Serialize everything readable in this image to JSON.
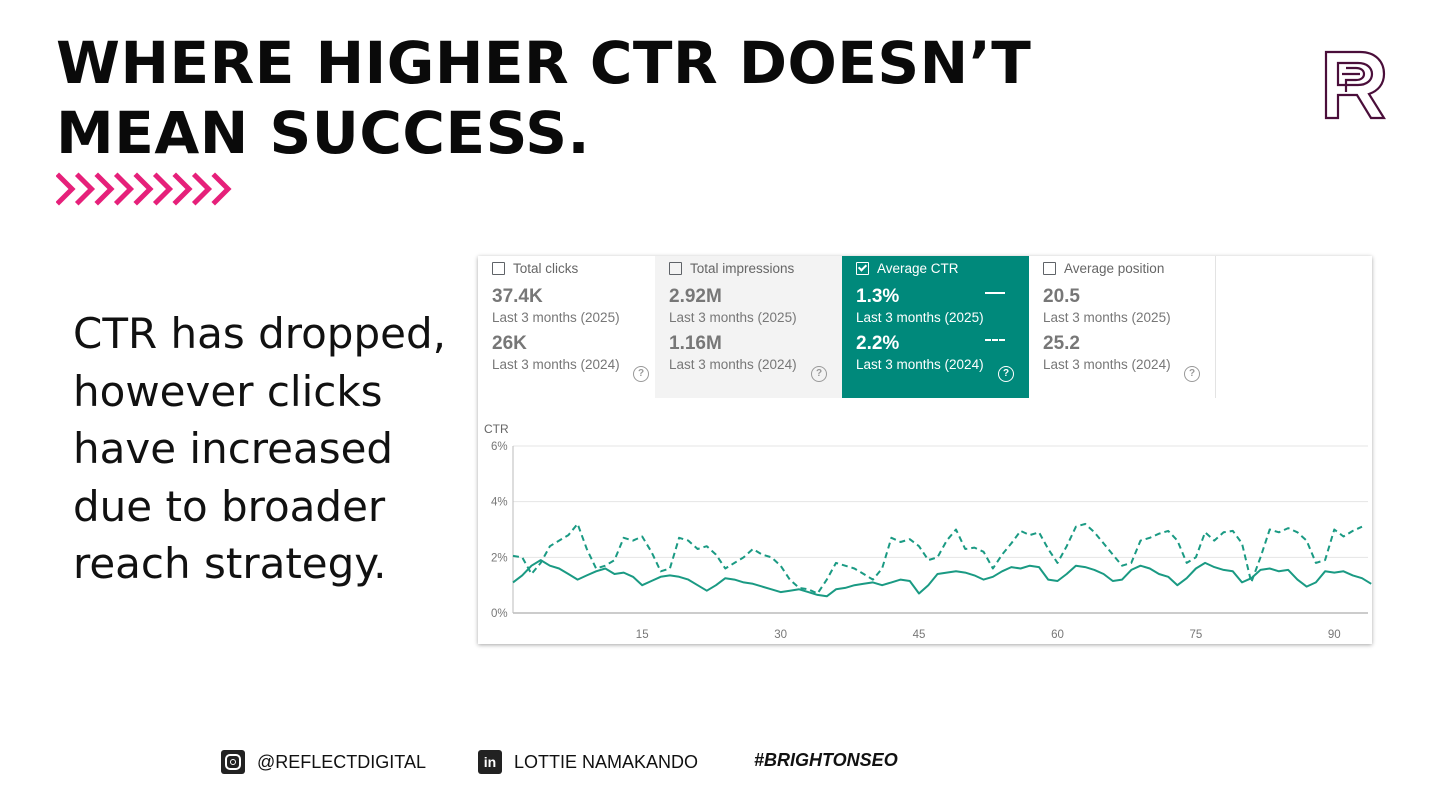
{
  "slide": {
    "title_line1": "WHERE HIGHER CTR DOESN’T",
    "title_line2": "MEAN SUCCESS.",
    "body_lines": [
      "CTR has dropped,",
      "however clicks",
      "have increased",
      "due to broader",
      "reach strategy."
    ],
    "accent_color": "#e6207a",
    "logo_color": "#4a0e3a"
  },
  "metrics": [
    {
      "label": "Total clicks",
      "checked": false,
      "value_2025": "37.4K",
      "period_2025": "Last 3 months (2025)",
      "value_2024": "26K",
      "period_2024": "Last 3 months (2024)"
    },
    {
      "label": "Total impressions",
      "checked": false,
      "value_2025": "2.92M",
      "period_2025": "Last 3 months (2025)",
      "value_2024": "1.16M",
      "period_2024": "Last 3 months (2024)"
    },
    {
      "label": "Average CTR",
      "checked": true,
      "value_2025": "1.3%",
      "period_2025": "Last 3 months (2025)",
      "value_2024": "2.2%",
      "period_2024": "Last 3 months (2024)"
    },
    {
      "label": "Average position",
      "checked": false,
      "value_2025": "20.5",
      "period_2025": "Last 3 months (2025)",
      "value_2024": "25.2",
      "period_2024": "Last 3 months (2024)"
    }
  ],
  "chart_data": {
    "type": "line",
    "ylabel": "CTR",
    "ylim": [
      0,
      6
    ],
    "yticks": [
      "0%",
      "2%",
      "4%",
      "6%"
    ],
    "ytick_values": [
      0,
      2,
      4,
      6
    ],
    "xlim": [
      1,
      93
    ],
    "xticks": [
      15,
      30,
      45,
      60,
      75,
      90
    ],
    "grid": true,
    "color": "#1a9a83",
    "series": [
      {
        "period": "Last 3 months (2025)",
        "style": "solid",
        "values": [
          1.1,
          1.35,
          1.7,
          1.9,
          1.7,
          1.6,
          1.4,
          1.2,
          1.35,
          1.5,
          1.6,
          1.4,
          1.45,
          1.3,
          1.0,
          1.15,
          1.3,
          1.35,
          1.3,
          1.2,
          1.0,
          0.8,
          1.0,
          1.25,
          1.2,
          1.1,
          1.05,
          0.95,
          0.85,
          0.75,
          0.8,
          0.85,
          0.75,
          0.65,
          0.6,
          0.85,
          0.9,
          1.0,
          1.05,
          1.1,
          1.0,
          1.1,
          1.2,
          1.15,
          0.7,
          1.0,
          1.4,
          1.45,
          1.5,
          1.45,
          1.35,
          1.2,
          1.3,
          1.5,
          1.65,
          1.6,
          1.7,
          1.65,
          1.2,
          1.15,
          1.4,
          1.7,
          1.65,
          1.55,
          1.4,
          1.15,
          1.2,
          1.55,
          1.7,
          1.6,
          1.4,
          1.3,
          1.0,
          1.25,
          1.6,
          1.8,
          1.65,
          1.55,
          1.5,
          1.1,
          1.25,
          1.55,
          1.6,
          1.5,
          1.55,
          1.2,
          0.95,
          1.1,
          1.5,
          1.45,
          1.5,
          1.35,
          1.25,
          1.05
        ]
      },
      {
        "period": "Last 3 months (2024)",
        "style": "dashed",
        "values": [
          2.05,
          2.0,
          1.4,
          1.8,
          2.4,
          2.6,
          2.8,
          3.2,
          2.3,
          1.6,
          1.7,
          1.9,
          2.7,
          2.6,
          2.75,
          2.2,
          1.5,
          1.6,
          2.7,
          2.6,
          2.3,
          2.4,
          2.1,
          1.6,
          1.8,
          2.0,
          2.3,
          2.1,
          2.0,
          1.7,
          1.2,
          0.9,
          0.85,
          0.7,
          1.2,
          1.8,
          1.7,
          1.6,
          1.4,
          1.2,
          1.6,
          2.7,
          2.55,
          2.65,
          2.4,
          1.9,
          2.0,
          2.6,
          3.0,
          2.3,
          2.35,
          2.2,
          1.6,
          2.1,
          2.5,
          2.95,
          2.8,
          2.9,
          2.3,
          1.8,
          2.4,
          3.1,
          3.2,
          2.9,
          2.5,
          2.1,
          1.7,
          1.8,
          2.6,
          2.7,
          2.85,
          2.95,
          2.6,
          1.8,
          2.0,
          2.9,
          2.6,
          2.9,
          2.95,
          2.5,
          1.1,
          2.0,
          3.0,
          2.9,
          3.05,
          2.9,
          2.6,
          1.8,
          1.9,
          3.0,
          2.75,
          2.95,
          3.1
        ]
      }
    ]
  },
  "footer": {
    "instagram": "@REFLECTDIGITAL",
    "linkedin": "LOTTIE NAMAKANDO",
    "hashtag": "#BRIGHTONSEO"
  }
}
